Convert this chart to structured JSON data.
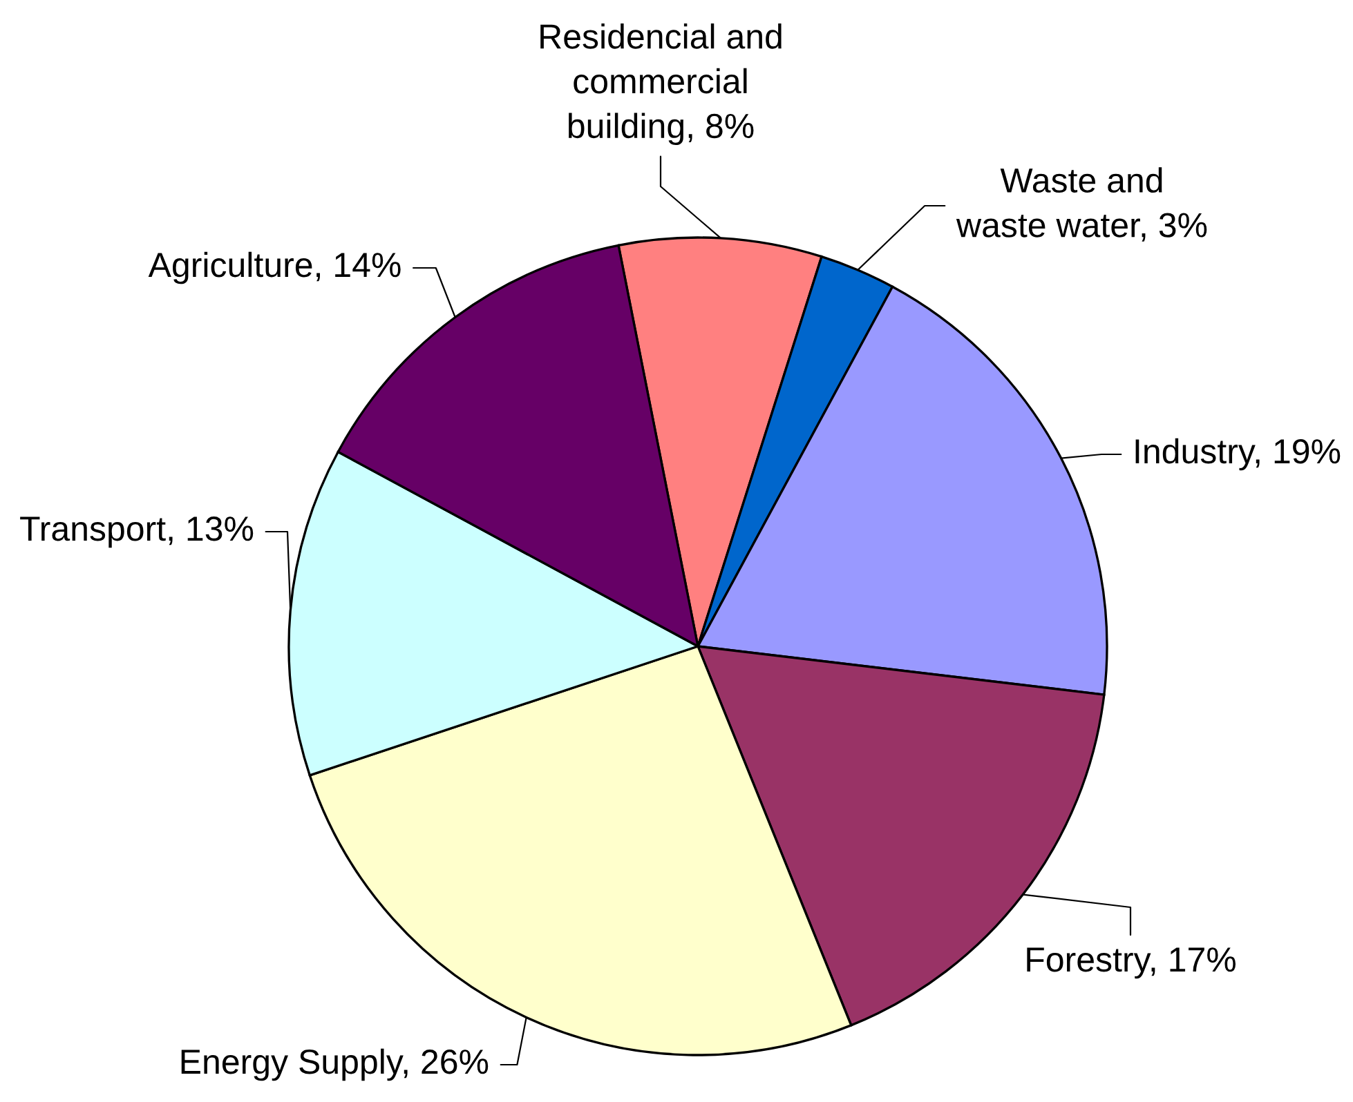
{
  "chart_data": {
    "type": "pie",
    "categories": [
      "Residencial and\ncommercial\nbuilding",
      "Waste and\nwaste water",
      "Industry",
      "Forestry",
      "Energy Supply",
      "Transport",
      "Agriculture"
    ],
    "values": [
      8,
      3,
      19,
      17,
      26,
      13,
      14
    ],
    "value_labels": [
      "8%",
      "3%",
      "19%",
      "17%",
      "26%",
      "13%",
      "14%"
    ],
    "colors": [
      "#ff8080",
      "#0066cc",
      "#9999ff",
      "#993366",
      "#ffffcc",
      "#ccffff",
      "#660066"
    ]
  }
}
